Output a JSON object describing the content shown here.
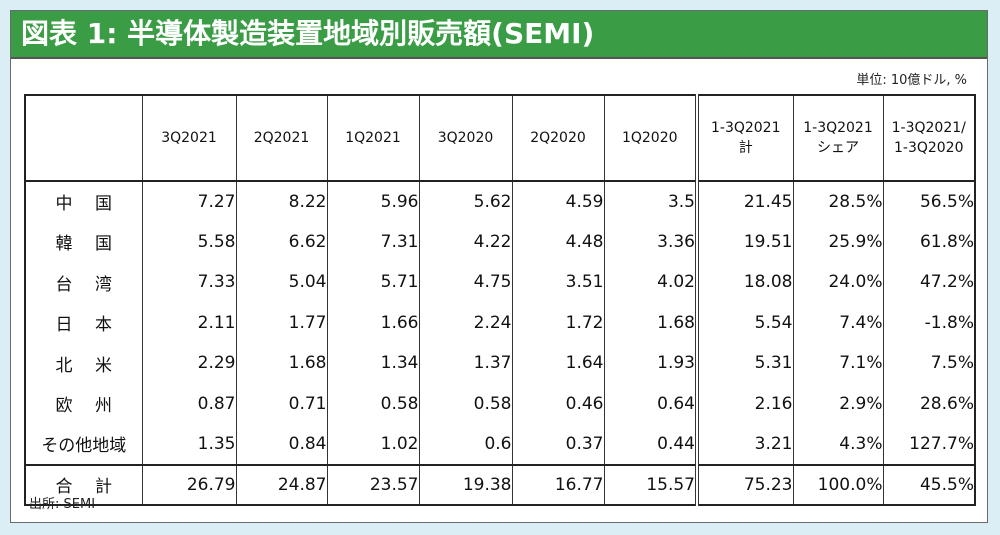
{
  "title": "図表 1: 半導体製造装置地域別販売額(SEMI)",
  "unit": "単位: 10億ドル, %",
  "source": "出所: SEMI",
  "colors": {
    "title_bg": "#3a9d45",
    "page_bg": "#dbeef6"
  },
  "columns": [
    "",
    "3Q2021",
    "2Q2021",
    "1Q2021",
    "3Q2020",
    "2Q2020",
    "1Q2020",
    "1-3Q2021\n計",
    "1-3Q2021\nシェア",
    "1-3Q2021/\n1-3Q2020"
  ],
  "rows": [
    {
      "label": "中　 国",
      "values": [
        "7.27",
        "8.22",
        "5.96",
        "5.62",
        "4.59",
        "3.5",
        "21.45",
        "28.5%",
        "56.5%"
      ]
    },
    {
      "label": "韓　 国",
      "values": [
        "5.58",
        "6.62",
        "7.31",
        "4.22",
        "4.48",
        "3.36",
        "19.51",
        "25.9%",
        "61.8%"
      ]
    },
    {
      "label": "台　 湾",
      "values": [
        "7.33",
        "5.04",
        "5.71",
        "4.75",
        "3.51",
        "4.02",
        "18.08",
        "24.0%",
        "47.2%"
      ]
    },
    {
      "label": "日　 本",
      "values": [
        "2.11",
        "1.77",
        "1.66",
        "2.24",
        "1.72",
        "1.68",
        "5.54",
        "7.4%",
        "-1.8%"
      ]
    },
    {
      "label": "北　 米",
      "values": [
        "2.29",
        "1.68",
        "1.34",
        "1.37",
        "1.64",
        "1.93",
        "5.31",
        "7.1%",
        "7.5%"
      ]
    },
    {
      "label": "欧　 州",
      "values": [
        "0.87",
        "0.71",
        "0.58",
        "0.58",
        "0.46",
        "0.64",
        "2.16",
        "2.9%",
        "28.6%"
      ]
    },
    {
      "label": "その他地域",
      "values": [
        "1.35",
        "0.84",
        "1.02",
        "0.6",
        "0.37",
        "0.44",
        "3.21",
        "4.3%",
        "127.7%"
      ]
    }
  ],
  "total": {
    "label": "合　 計",
    "values": [
      "26.79",
      "24.87",
      "23.57",
      "19.38",
      "16.77",
      "15.57",
      "75.23",
      "100.0%",
      "45.5%"
    ]
  }
}
